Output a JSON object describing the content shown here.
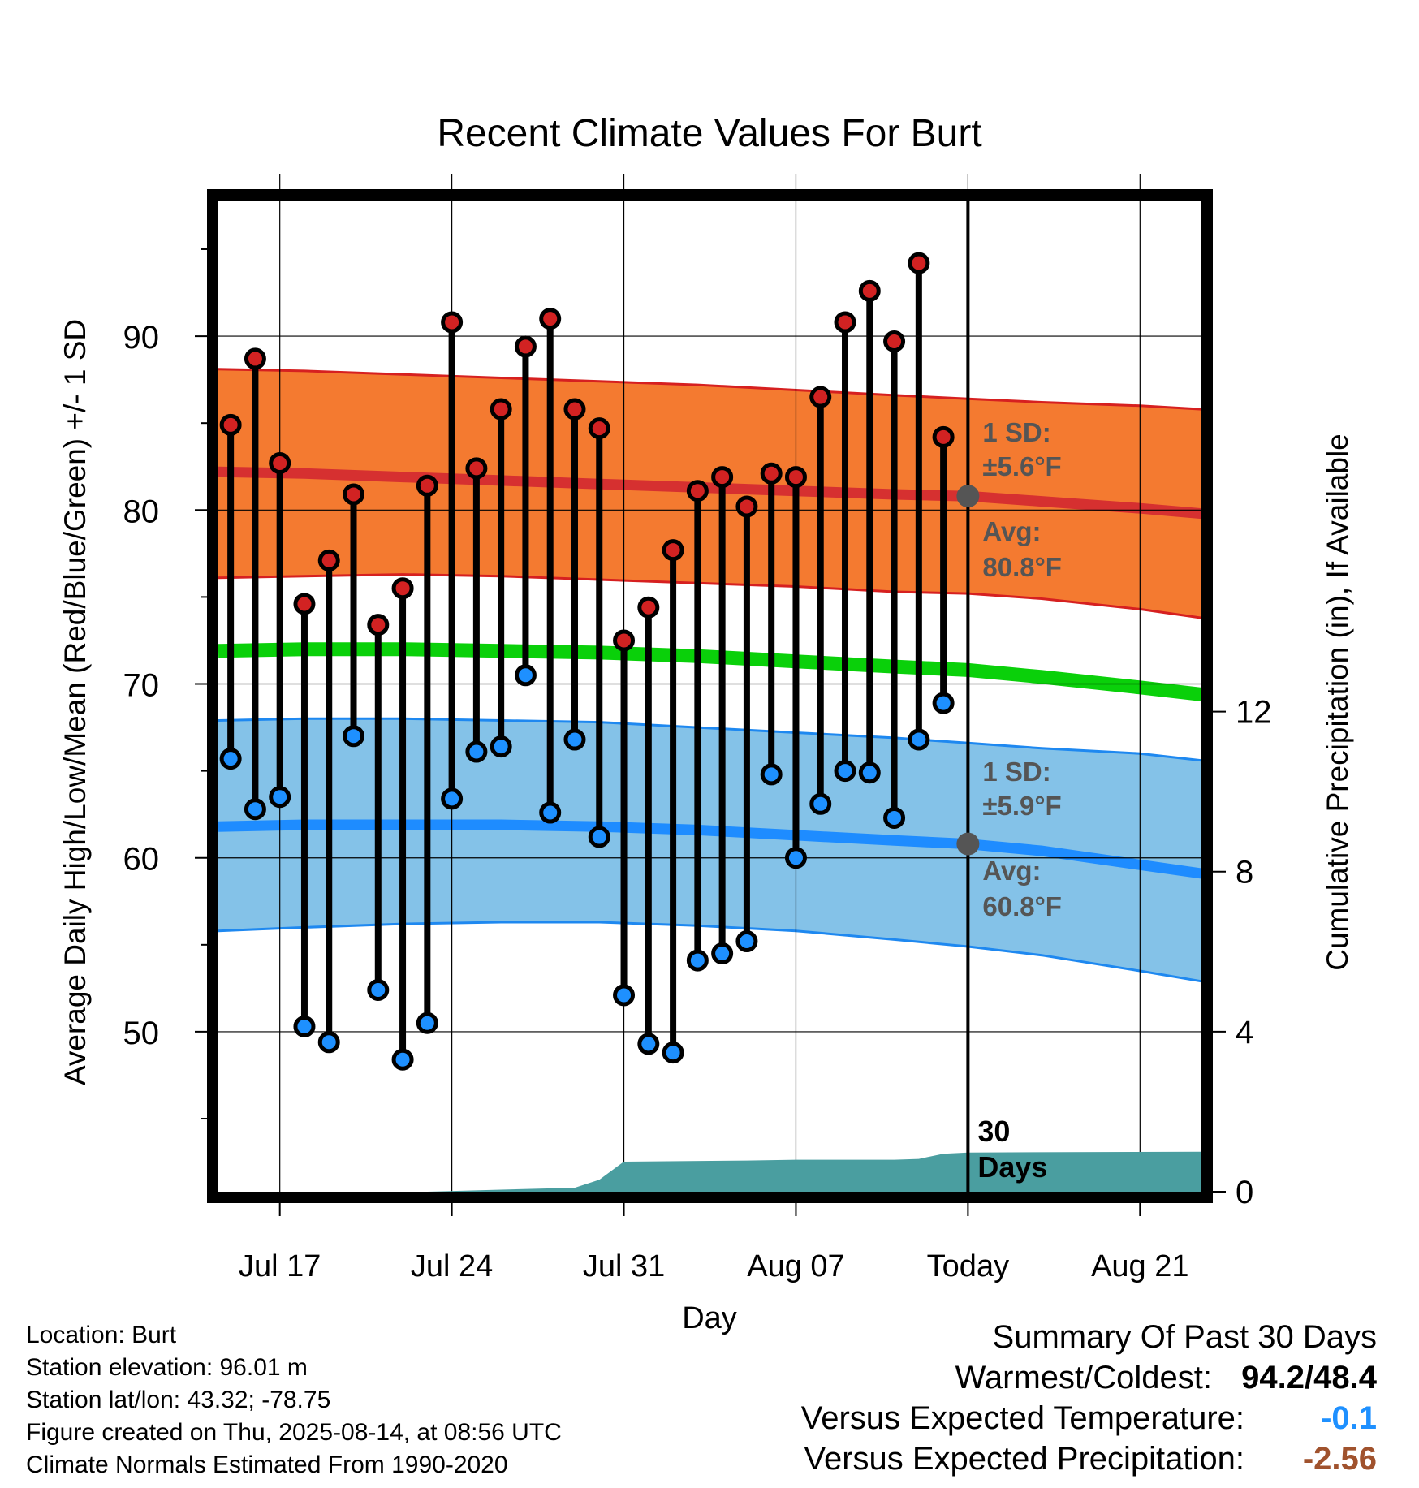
{
  "chart_data": {
    "type": "line",
    "title": "Recent Climate Values For Burt",
    "xlabel": "Day",
    "ylabel": "Average Daily High/Low/Mean (Red/Blue/Green) +/- 1 SD",
    "y2label": "Cumulative Precipitation (in), If Available",
    "ylim": [
      40.8,
      97.8
    ],
    "y_ticks": [
      50,
      60,
      70,
      80,
      90
    ],
    "y2lim": [
      0,
      22
    ],
    "y2_ticks": [
      0,
      4,
      8,
      12
    ],
    "x_range_days": [
      14.5,
      54.5
    ],
    "x_ticks": [
      {
        "day": 17,
        "label": "Jul 17"
      },
      {
        "day": 24,
        "label": "Jul 24"
      },
      {
        "day": 31,
        "label": "Jul 31"
      },
      {
        "day": 38,
        "label": "Aug 07"
      },
      {
        "day": 45,
        "label": "Today"
      },
      {
        "day": 52,
        "label": "Aug 21"
      }
    ],
    "grid": true,
    "today_day": 45,
    "today_label_line1": "30",
    "today_label_line2": "Days",
    "observed": {
      "days": [
        15,
        16,
        17,
        18,
        19,
        20,
        21,
        22,
        23,
        24,
        25,
        26,
        27,
        28,
        29,
        30,
        31,
        32,
        33,
        34,
        35,
        36,
        37,
        38,
        39,
        40,
        41,
        42,
        43,
        44
      ],
      "highs": [
        84.9,
        88.7,
        82.7,
        74.6,
        77.1,
        80.9,
        73.4,
        75.5,
        81.4,
        90.8,
        82.4,
        85.8,
        89.4,
        91.0,
        85.8,
        84.7,
        72.5,
        74.4,
        77.7,
        81.1,
        81.9,
        80.2,
        82.1,
        81.9,
        86.5,
        90.8,
        92.6,
        89.7,
        94.2,
        84.2
      ],
      "lows": [
        65.7,
        62.8,
        63.5,
        50.3,
        49.4,
        67.0,
        52.4,
        48.4,
        50.5,
        63.4,
        66.1,
        66.4,
        70.5,
        62.6,
        66.8,
        61.2,
        52.1,
        49.3,
        48.8,
        54.1,
        54.5,
        55.2,
        64.8,
        60.0,
        63.1,
        65.0,
        64.9,
        62.3,
        66.8,
        68.9
      ]
    },
    "normals": {
      "days": [
        14.5,
        18,
        22,
        26,
        30,
        34,
        38,
        42,
        45,
        48,
        52,
        54.5
      ],
      "high_mean": [
        82.2,
        82.1,
        81.9,
        81.7,
        81.5,
        81.3,
        81.1,
        80.9,
        80.8,
        80.5,
        80.1,
        79.8
      ],
      "high_upper": [
        88.1,
        88.0,
        87.8,
        87.6,
        87.4,
        87.2,
        86.9,
        86.6,
        86.4,
        86.2,
        86.0,
        85.8
      ],
      "high_lower": [
        76.1,
        76.2,
        76.3,
        76.2,
        76.0,
        75.8,
        75.6,
        75.3,
        75.2,
        74.9,
        74.3,
        73.8
      ],
      "low_mean": [
        61.8,
        61.9,
        61.9,
        61.9,
        61.8,
        61.6,
        61.3,
        61.0,
        60.8,
        60.4,
        59.6,
        59.1
      ],
      "low_upper": [
        67.9,
        68.0,
        68.0,
        67.9,
        67.8,
        67.5,
        67.2,
        66.9,
        66.6,
        66.3,
        66.0,
        65.6
      ],
      "low_lower": [
        55.8,
        56.0,
        56.2,
        56.3,
        56.3,
        56.1,
        55.8,
        55.3,
        54.9,
        54.4,
        53.5,
        52.9
      ],
      "mean": [
        71.9,
        72.0,
        72.0,
        71.9,
        71.8,
        71.6,
        71.3,
        71.0,
        70.8,
        70.4,
        69.8,
        69.4
      ]
    },
    "precip": {
      "days": [
        14.5,
        23,
        26,
        29,
        30,
        31,
        36,
        38,
        42,
        43,
        44,
        45,
        54.5
      ],
      "cumulative": [
        0,
        0,
        0.05,
        0.1,
        0.3,
        0.75,
        0.78,
        0.8,
        0.8,
        0.82,
        0.95,
        0.98,
        1.0
      ]
    },
    "annotations": {
      "high_sd_line1": "1 SD:",
      "high_sd_line2": "±5.6°F",
      "high_avg_line1": "Avg:",
      "high_avg_line2": "80.8°F",
      "high_avg_value": 80.8,
      "low_sd_line1": "1 SD:",
      "low_sd_line2": "±5.9°F",
      "low_avg_line1": "Avg:",
      "low_avg_line2": "60.8°F",
      "low_avg_value": 60.8
    },
    "colors": {
      "high_band": "#f47a30",
      "high_band_edge": "#d62020",
      "high_mean_line": "#d63030",
      "low_band": "#84c2e8",
      "low_band_edge": "#1e88f0",
      "low_mean_line": "#1e8cff",
      "mean_line": "#0ad00a",
      "high_dot": "#d22222",
      "low_dot": "#1e90ff",
      "precip_fill": "#4a9ea0",
      "annotation_text": "#555555",
      "avg_marker": "#555555"
    }
  },
  "footer": {
    "location": "Location: Burt",
    "elevation": "Station elevation: 96.01 m",
    "latlon": "Station lat/lon: 43.32; -78.75",
    "created": "Figure created on Thu, 2025-08-14, at 08:56 UTC",
    "normals": "Climate Normals Estimated From 1990-2020"
  },
  "summary": {
    "title": "Summary Of Past 30 Days",
    "warmest_label": "Warmest/Coldest:",
    "warmest_value": "94.2/48.4",
    "temp_label": "Versus Expected Temperature:",
    "temp_value": "-0.1",
    "temp_color": "#1e90ff",
    "precip_label": "Versus Expected Precipitation:",
    "precip_value": "-2.56",
    "precip_color": "#a0522d"
  }
}
